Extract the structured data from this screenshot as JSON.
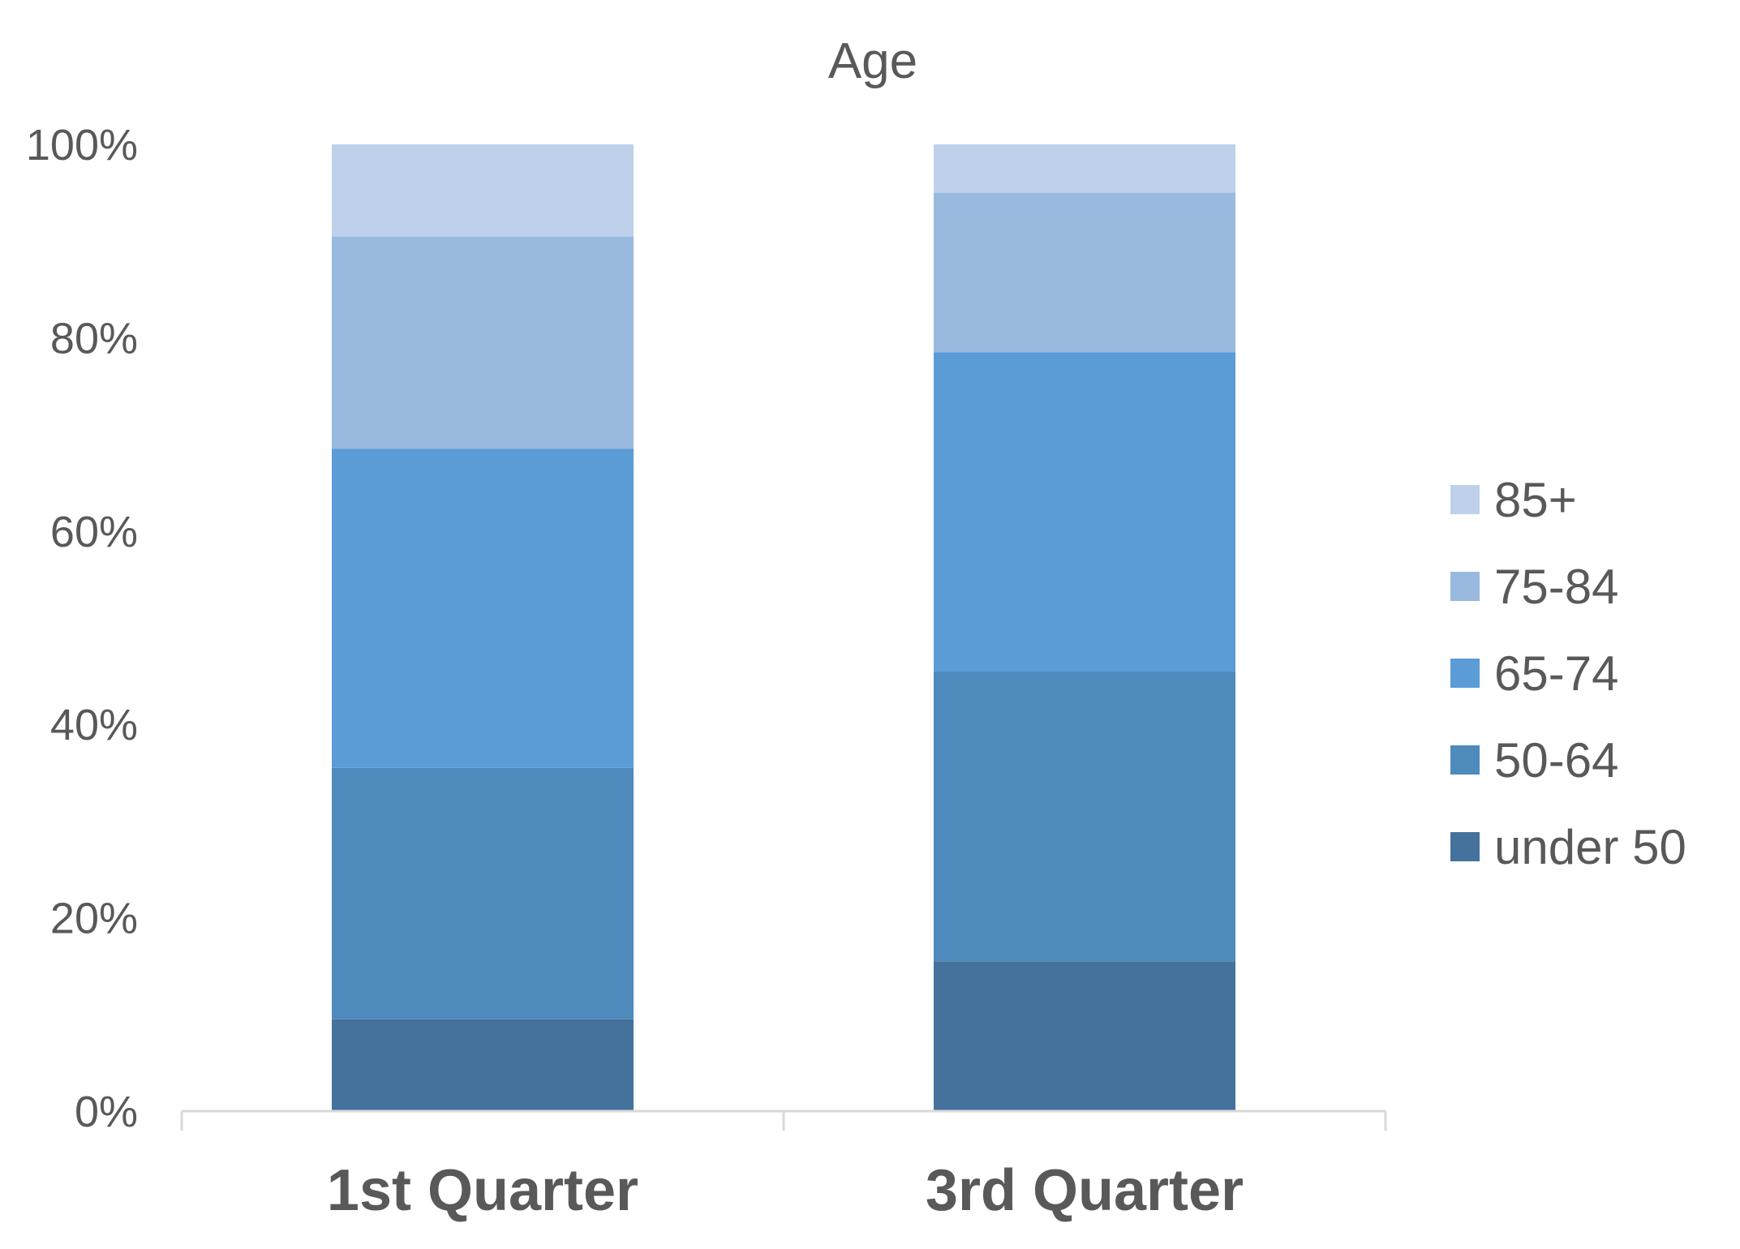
{
  "chart_data": {
    "type": "bar",
    "stacked": true,
    "normalized": true,
    "title": "Age",
    "xlabel": "",
    "ylabel": "",
    "categories": [
      "1st Quarter",
      "3rd Quarter"
    ],
    "y_tick_labels": [
      "0%",
      "20%",
      "40%",
      "60%",
      "80%",
      "100%"
    ],
    "ylim": [
      0,
      100
    ],
    "y_unit": "%",
    "grid": false,
    "legend_position": "right",
    "series": [
      {
        "name": "under 50",
        "color": "#44729d",
        "values": [
          9.5,
          15.5
        ]
      },
      {
        "name": "50-64",
        "color": "#4f8abc",
        "values": [
          26.0,
          30.0
        ]
      },
      {
        "name": "65-74",
        "color": "#5b9bd6",
        "values": [
          33.0,
          33.0
        ]
      },
      {
        "name": "75-84",
        "color": "#9ab9df",
        "values": [
          22.0,
          16.5
        ]
      },
      {
        "name": "85+",
        "color": "#bfd1ea",
        "values": [
          9.5,
          5.0
        ]
      }
    ],
    "axis_color": "#d9d9d9",
    "text_color": "#595959"
  }
}
